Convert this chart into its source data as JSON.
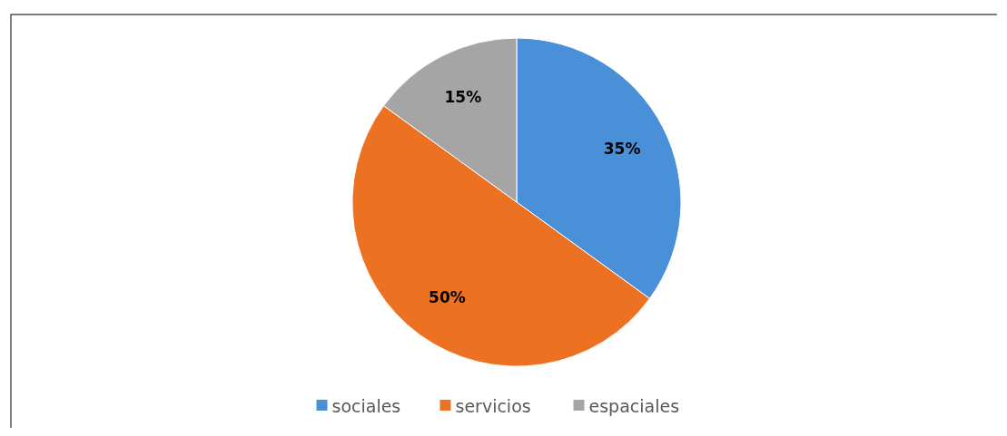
{
  "chart_data": {
    "type": "pie",
    "categories": [
      "sociales",
      "servicios",
      "espaciales"
    ],
    "values": [
      35,
      50,
      15
    ],
    "colors": [
      "#4a90d9",
      "#ed7123",
      "#a5a5a5"
    ],
    "value_labels": [
      "35%",
      "50%",
      "15%"
    ],
    "legend": "bottom"
  }
}
